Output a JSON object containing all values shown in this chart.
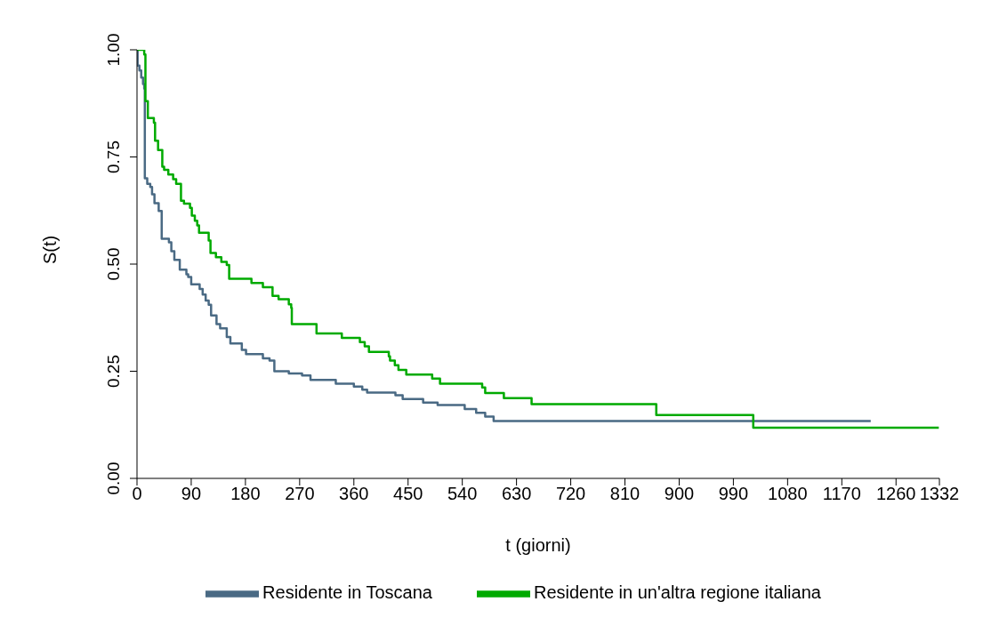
{
  "chart_data": {
    "type": "step",
    "xlabel": "t (giorni)",
    "ylabel": "S(t)",
    "xlim": [
      0,
      1332
    ],
    "xticks": [
      0,
      90,
      180,
      270,
      360,
      450,
      540,
      630,
      720,
      810,
      900,
      990,
      1080,
      1170,
      1260,
      1332
    ],
    "ylim": [
      0,
      1
    ],
    "yticks": [
      {
        "value": 0,
        "label": "0.00"
      },
      {
        "value": 0.25,
        "label": "0.25"
      },
      {
        "value": 0.5,
        "label": "0.50"
      },
      {
        "value": 0.75,
        "label": "0.75"
      },
      {
        "value": 1,
        "label": "1.00"
      }
    ],
    "grid": false,
    "legend": "bottom",
    "marker": "none",
    "line_style": "solid",
    "series": [
      {
        "name": "Residente in Toscana",
        "color": "#4a6a84",
        "x": [
          0,
          1,
          4,
          7,
          10,
          12,
          13,
          17,
          22,
          25,
          29,
          36,
          41,
          53,
          57,
          62,
          71,
          82,
          85,
          90,
          104,
          109,
          114,
          119,
          123,
          132,
          138,
          149,
          155,
          174,
          181,
          209,
          220,
          228,
          252,
          274,
          288,
          330,
          360,
          374,
          382,
          429,
          441,
          475,
          499,
          544,
          563,
          578,
          592,
          1218
        ],
        "values": [
          1,
          0.963,
          0.952,
          0.935,
          0.92,
          0.909,
          0.7,
          0.687,
          0.68,
          0.663,
          0.642,
          0.624,
          0.559,
          0.551,
          0.53,
          0.51,
          0.487,
          0.476,
          0.47,
          0.453,
          0.442,
          0.429,
          0.415,
          0.405,
          0.38,
          0.36,
          0.35,
          0.33,
          0.315,
          0.3,
          0.29,
          0.28,
          0.275,
          0.25,
          0.245,
          0.24,
          0.23,
          0.221,
          0.214,
          0.207,
          0.2,
          0.194,
          0.185,
          0.177,
          0.171,
          0.162,
          0.153,
          0.144,
          0.134,
          0.134
        ]
      },
      {
        "name": "Residente in un'altra regione italiana",
        "color": "#00aa00",
        "x": [
          0,
          12,
          14,
          18,
          28,
          30,
          35,
          42,
          45,
          52,
          60,
          65,
          73,
          78,
          88,
          91,
          96,
          100,
          103,
          119,
          122,
          131,
          140,
          149,
          153,
          190,
          209,
          225,
          235,
          252,
          256,
          257,
          298,
          340,
          370,
          378,
          385,
          418,
          420,
          428,
          434,
          447,
          490,
          503,
          573,
          578,
          609,
          655,
          862,
          1023,
          1331
        ],
        "values": [
          1,
          0.989,
          0.88,
          0.841,
          0.83,
          0.788,
          0.766,
          0.727,
          0.72,
          0.709,
          0.698,
          0.687,
          0.648,
          0.641,
          0.631,
          0.613,
          0.601,
          0.59,
          0.573,
          0.555,
          0.526,
          0.516,
          0.505,
          0.498,
          0.466,
          0.456,
          0.446,
          0.426,
          0.418,
          0.406,
          0.398,
          0.36,
          0.338,
          0.328,
          0.318,
          0.308,
          0.295,
          0.285,
          0.275,
          0.264,
          0.253,
          0.242,
          0.233,
          0.221,
          0.212,
          0.199,
          0.187,
          0.173,
          0.148,
          0.118,
          0.118
        ]
      }
    ]
  }
}
